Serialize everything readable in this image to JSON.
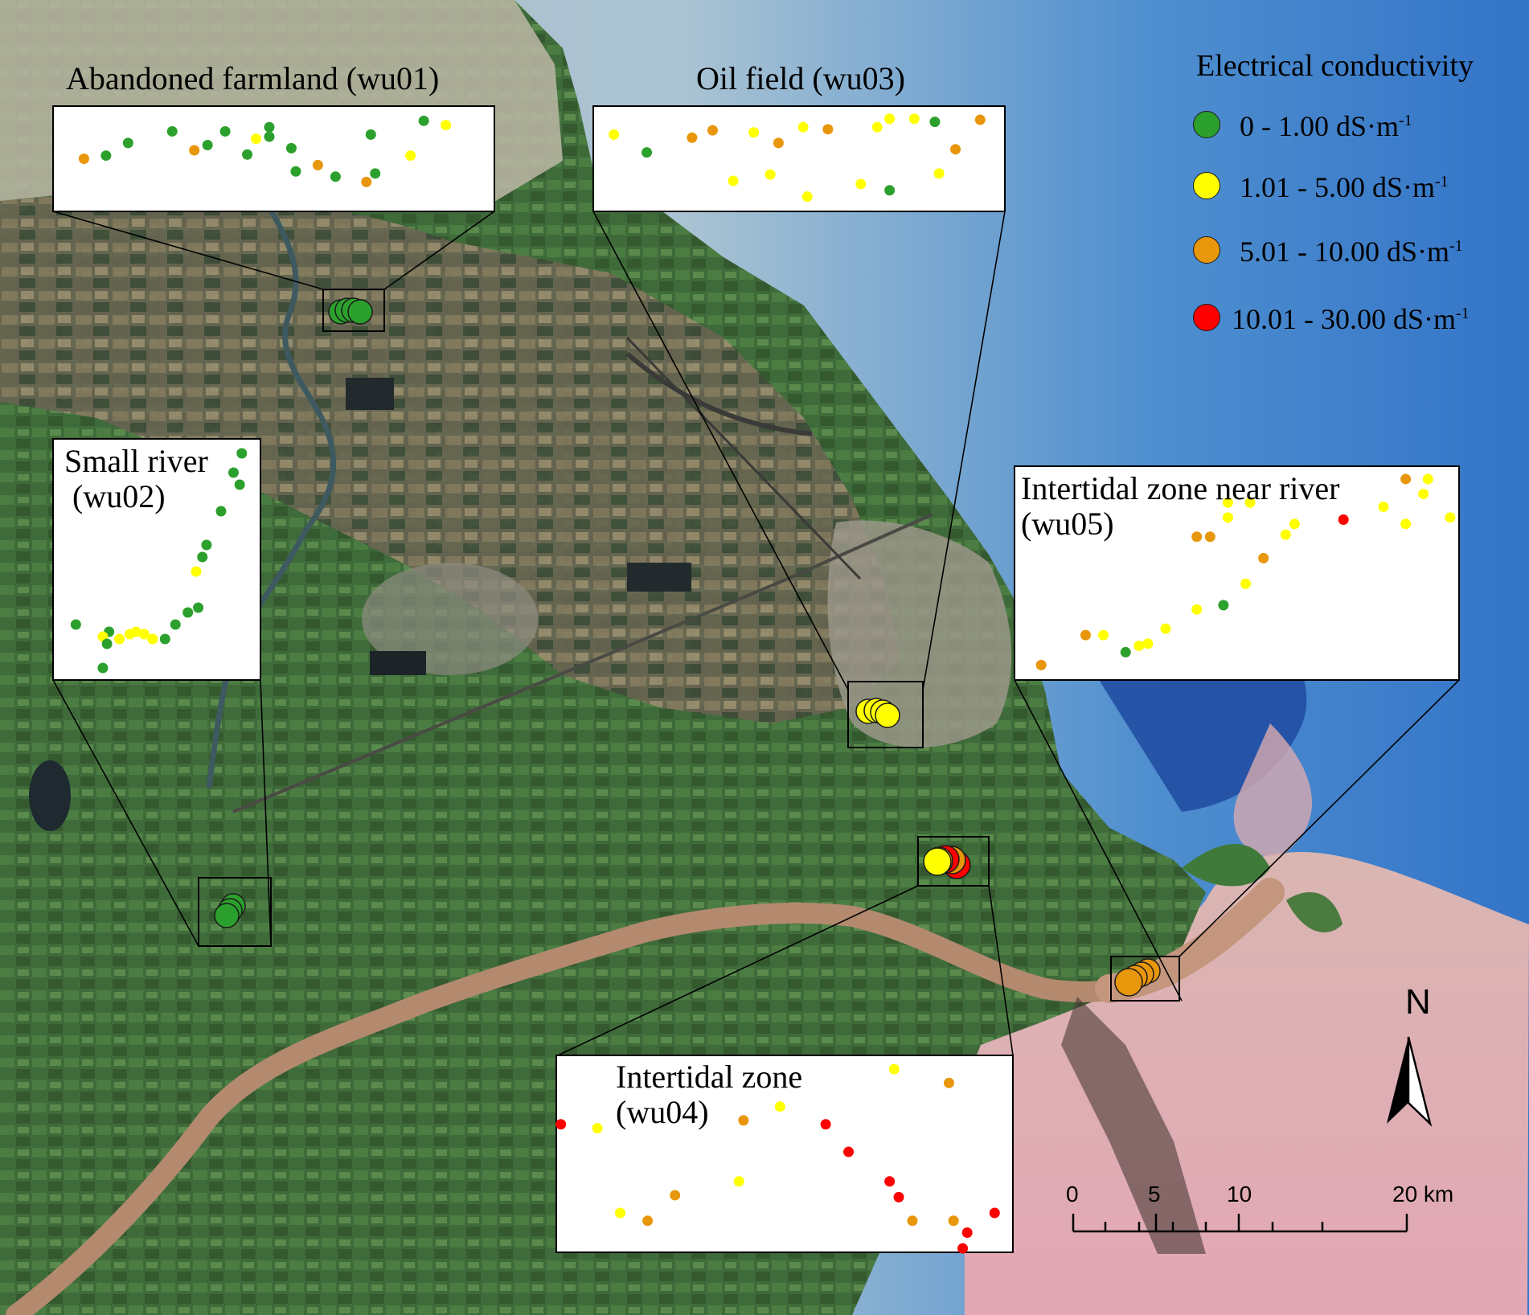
{
  "legend": {
    "title": "Electrical conductivity",
    "items": [
      {
        "label": "0 - 1.00 dS·m",
        "sup": "-1",
        "color": "#2ca02c",
        "class": "low"
      },
      {
        "label": "1.01 - 5.00 dS·m",
        "sup": "-1",
        "color": "#ffff00",
        "class": "moderate"
      },
      {
        "label": "5.01 - 10.00 dS·m",
        "sup": "-1",
        "color": "#e8960b",
        "class": "high"
      },
      {
        "label": "10.01 - 30.00 dS·m",
        "sup": "-1",
        "color": "#ff0000",
        "class": "very-high"
      }
    ]
  },
  "insets": [
    {
      "id": "wu01",
      "title": "Abandoned farmland (wu01)",
      "points": [
        {
          "x": 0.07,
          "y": 0.5,
          "c": "high"
        },
        {
          "x": 0.12,
          "y": 0.47,
          "c": "low"
        },
        {
          "x": 0.17,
          "y": 0.35,
          "c": "low"
        },
        {
          "x": 0.27,
          "y": 0.24,
          "c": "low"
        },
        {
          "x": 0.32,
          "y": 0.42,
          "c": "high"
        },
        {
          "x": 0.35,
          "y": 0.37,
          "c": "low"
        },
        {
          "x": 0.39,
          "y": 0.24,
          "c": "low"
        },
        {
          "x": 0.44,
          "y": 0.46,
          "c": "low"
        },
        {
          "x": 0.46,
          "y": 0.31,
          "c": "moderate"
        },
        {
          "x": 0.49,
          "y": 0.29,
          "c": "low"
        },
        {
          "x": 0.49,
          "y": 0.2,
          "c": "low"
        },
        {
          "x": 0.54,
          "y": 0.4,
          "c": "low"
        },
        {
          "x": 0.55,
          "y": 0.62,
          "c": "low"
        },
        {
          "x": 0.6,
          "y": 0.56,
          "c": "high"
        },
        {
          "x": 0.64,
          "y": 0.67,
          "c": "low"
        },
        {
          "x": 0.71,
          "y": 0.72,
          "c": "high"
        },
        {
          "x": 0.72,
          "y": 0.27,
          "c": "low"
        },
        {
          "x": 0.73,
          "y": 0.64,
          "c": "low"
        },
        {
          "x": 0.81,
          "y": 0.47,
          "c": "moderate"
        },
        {
          "x": 0.84,
          "y": 0.14,
          "c": "low"
        },
        {
          "x": 0.89,
          "y": 0.18,
          "c": "moderate"
        }
      ]
    },
    {
      "id": "wu03",
      "title": "Oil field (wu03)",
      "points": [
        {
          "x": 0.05,
          "y": 0.27,
          "c": "moderate"
        },
        {
          "x": 0.13,
          "y": 0.44,
          "c": "low"
        },
        {
          "x": 0.24,
          "y": 0.3,
          "c": "high"
        },
        {
          "x": 0.29,
          "y": 0.23,
          "c": "high"
        },
        {
          "x": 0.34,
          "y": 0.71,
          "c": "moderate"
        },
        {
          "x": 0.39,
          "y": 0.25,
          "c": "moderate"
        },
        {
          "x": 0.43,
          "y": 0.65,
          "c": "moderate"
        },
        {
          "x": 0.45,
          "y": 0.35,
          "c": "high"
        },
        {
          "x": 0.51,
          "y": 0.2,
          "c": "moderate"
        },
        {
          "x": 0.52,
          "y": 0.86,
          "c": "moderate"
        },
        {
          "x": 0.57,
          "y": 0.22,
          "c": "high"
        },
        {
          "x": 0.65,
          "y": 0.74,
          "c": "moderate"
        },
        {
          "x": 0.69,
          "y": 0.2,
          "c": "moderate"
        },
        {
          "x": 0.72,
          "y": 0.12,
          "c": "moderate"
        },
        {
          "x": 0.72,
          "y": 0.8,
          "c": "low"
        },
        {
          "x": 0.78,
          "y": 0.12,
          "c": "moderate"
        },
        {
          "x": 0.83,
          "y": 0.15,
          "c": "low"
        },
        {
          "x": 0.84,
          "y": 0.64,
          "c": "moderate"
        },
        {
          "x": 0.88,
          "y": 0.41,
          "c": "high"
        },
        {
          "x": 0.94,
          "y": 0.13,
          "c": "high"
        }
      ]
    },
    {
      "id": "wu02",
      "title": "Small river\n (wu02)",
      "points": [
        {
          "x": 0.91,
          "y": 0.06,
          "c": "low"
        },
        {
          "x": 0.87,
          "y": 0.14,
          "c": "low"
        },
        {
          "x": 0.9,
          "y": 0.19,
          "c": "low"
        },
        {
          "x": 0.81,
          "y": 0.3,
          "c": "low"
        },
        {
          "x": 0.74,
          "y": 0.44,
          "c": "low"
        },
        {
          "x": 0.72,
          "y": 0.49,
          "c": "low"
        },
        {
          "x": 0.69,
          "y": 0.55,
          "c": "moderate"
        },
        {
          "x": 0.7,
          "y": 0.7,
          "c": "low"
        },
        {
          "x": 0.65,
          "y": 0.72,
          "c": "low"
        },
        {
          "x": 0.59,
          "y": 0.77,
          "c": "low"
        },
        {
          "x": 0.11,
          "y": 0.77,
          "c": "low"
        },
        {
          "x": 0.27,
          "y": 0.8,
          "c": "low"
        },
        {
          "x": 0.32,
          "y": 0.83,
          "c": "moderate"
        },
        {
          "x": 0.37,
          "y": 0.81,
          "c": "moderate"
        },
        {
          "x": 0.4,
          "y": 0.8,
          "c": "moderate"
        },
        {
          "x": 0.44,
          "y": 0.81,
          "c": "moderate"
        },
        {
          "x": 0.48,
          "y": 0.83,
          "c": "moderate"
        },
        {
          "x": 0.24,
          "y": 0.82,
          "c": "moderate"
        },
        {
          "x": 0.54,
          "y": 0.83,
          "c": "low"
        },
        {
          "x": 0.26,
          "y": 0.85,
          "c": "low"
        },
        {
          "x": 0.24,
          "y": 0.95,
          "c": "low"
        }
      ]
    },
    {
      "id": "wu05",
      "title": "Intertidal zone near river\n(wu05)",
      "points": [
        {
          "x": 0.06,
          "y": 0.93,
          "c": "high"
        },
        {
          "x": 0.16,
          "y": 0.79,
          "c": "high"
        },
        {
          "x": 0.2,
          "y": 0.79,
          "c": "moderate"
        },
        {
          "x": 0.25,
          "y": 0.87,
          "c": "low"
        },
        {
          "x": 0.28,
          "y": 0.84,
          "c": "moderate"
        },
        {
          "x": 0.3,
          "y": 0.83,
          "c": "moderate"
        },
        {
          "x": 0.34,
          "y": 0.76,
          "c": "moderate"
        },
        {
          "x": 0.41,
          "y": 0.67,
          "c": "moderate"
        },
        {
          "x": 0.47,
          "y": 0.65,
          "c": "low"
        },
        {
          "x": 0.52,
          "y": 0.55,
          "c": "moderate"
        },
        {
          "x": 0.56,
          "y": 0.43,
          "c": "high"
        },
        {
          "x": 0.61,
          "y": 0.32,
          "c": "moderate"
        },
        {
          "x": 0.63,
          "y": 0.27,
          "c": "moderate"
        },
        {
          "x": 0.41,
          "y": 0.33,
          "c": "high"
        },
        {
          "x": 0.44,
          "y": 0.33,
          "c": "high"
        },
        {
          "x": 0.48,
          "y": 0.17,
          "c": "moderate"
        },
        {
          "x": 0.53,
          "y": 0.17,
          "c": "moderate"
        },
        {
          "x": 0.48,
          "y": 0.24,
          "c": "moderate"
        },
        {
          "x": 0.74,
          "y": 0.25,
          "c": "very-high"
        },
        {
          "x": 0.83,
          "y": 0.19,
          "c": "moderate"
        },
        {
          "x": 0.88,
          "y": 0.06,
          "c": "high"
        },
        {
          "x": 0.93,
          "y": 0.06,
          "c": "moderate"
        },
        {
          "x": 0.88,
          "y": 0.27,
          "c": "moderate"
        },
        {
          "x": 0.92,
          "y": 0.13,
          "c": "moderate"
        },
        {
          "x": 0.98,
          "y": 0.24,
          "c": "moderate"
        }
      ]
    },
    {
      "id": "wu04",
      "title": "Intertidal zone\n(wu04)",
      "points": [
        {
          "x": 0.01,
          "y": 0.35,
          "c": "very-high"
        },
        {
          "x": 0.09,
          "y": 0.37,
          "c": "moderate"
        },
        {
          "x": 0.14,
          "y": 0.8,
          "c": "moderate"
        },
        {
          "x": 0.2,
          "y": 0.84,
          "c": "high"
        },
        {
          "x": 0.26,
          "y": 0.71,
          "c": "high"
        },
        {
          "x": 0.4,
          "y": 0.64,
          "c": "moderate"
        },
        {
          "x": 0.41,
          "y": 0.33,
          "c": "high"
        },
        {
          "x": 0.49,
          "y": 0.26,
          "c": "moderate"
        },
        {
          "x": 0.59,
          "y": 0.35,
          "c": "very-high"
        },
        {
          "x": 0.64,
          "y": 0.49,
          "c": "very-high"
        },
        {
          "x": 0.73,
          "y": 0.64,
          "c": "very-high"
        },
        {
          "x": 0.74,
          "y": 0.07,
          "c": "moderate"
        },
        {
          "x": 0.75,
          "y": 0.72,
          "c": "very-high"
        },
        {
          "x": 0.78,
          "y": 0.84,
          "c": "high"
        },
        {
          "x": 0.86,
          "y": 0.14,
          "c": "high"
        },
        {
          "x": 0.87,
          "y": 0.84,
          "c": "high"
        },
        {
          "x": 0.9,
          "y": 0.9,
          "c": "very-high"
        },
        {
          "x": 0.89,
          "y": 0.98,
          "c": "very-high"
        },
        {
          "x": 0.96,
          "y": 0.8,
          "c": "very-high"
        }
      ]
    }
  ],
  "scale_bar": {
    "ticks": [
      "0",
      "5",
      "10",
      "20 km"
    ]
  },
  "north_label": "N"
}
